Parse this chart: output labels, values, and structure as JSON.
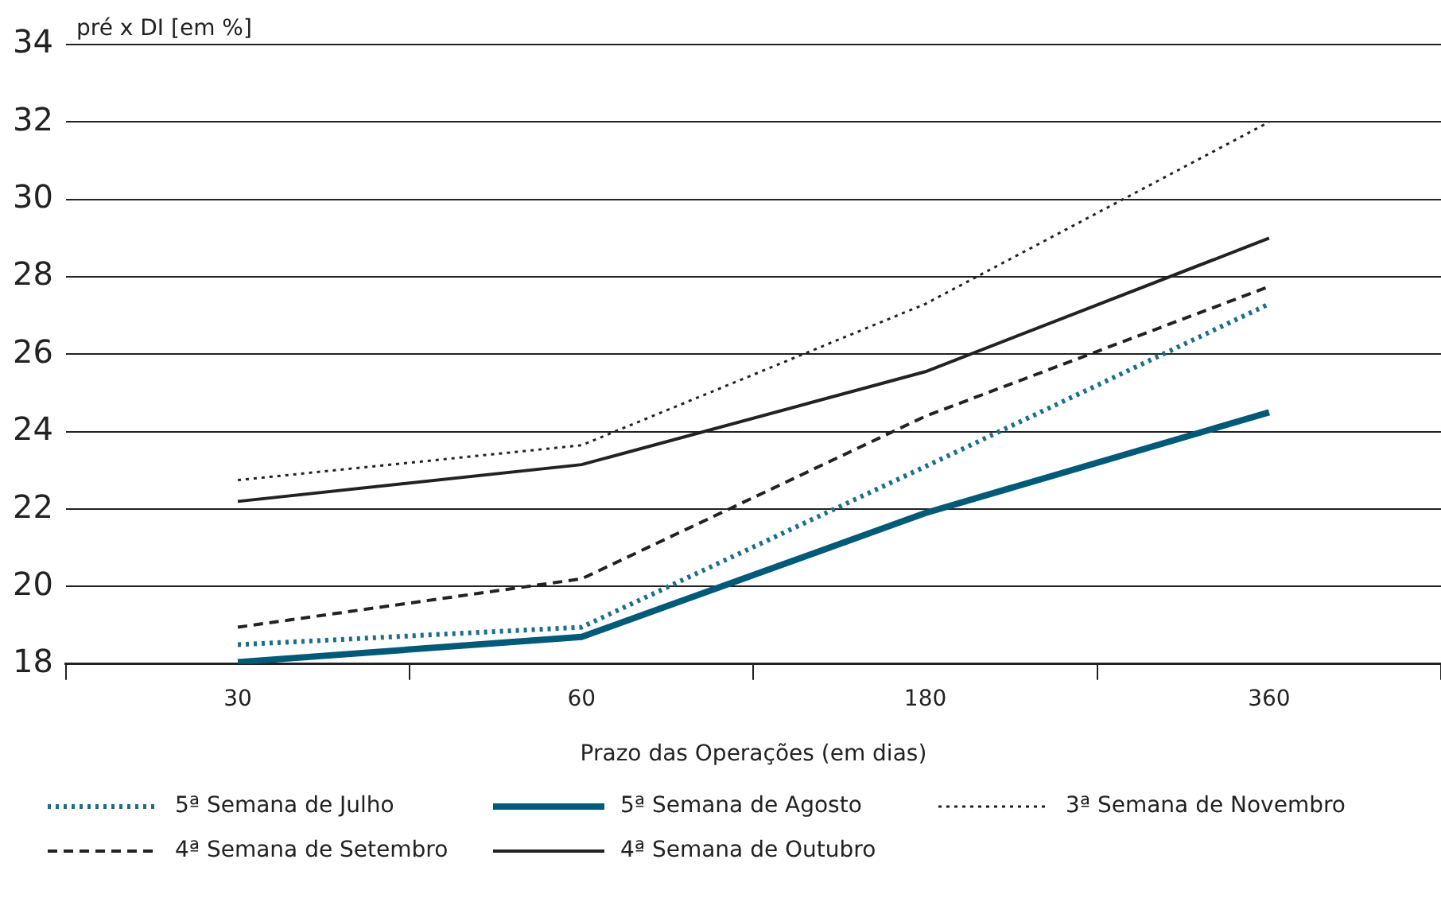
{
  "chart_data": {
    "type": "line",
    "ylabel": "pré x DI [em %]",
    "xlabel": "Prazo das Operações (em dias)",
    "categories": [
      "30",
      "60",
      "180",
      "360"
    ],
    "ylim": [
      18,
      34
    ],
    "yticks": [
      18,
      20,
      22,
      24,
      26,
      28,
      30,
      32,
      34
    ],
    "grid": "y",
    "legend": "bottom",
    "marker": "none",
    "series": [
      {
        "name": "5ª Semana de Julho",
        "color": "#1b6f8c",
        "line_style": "dotted",
        "values": [
          18.5,
          18.95,
          23.1,
          27.3
        ]
      },
      {
        "name": "4ª Semana de Setembro",
        "color": "#222222",
        "line_style": "dashed",
        "values": [
          18.95,
          20.2,
          24.4,
          27.75
        ]
      },
      {
        "name": "5ª Semana de Agosto",
        "color": "#005a78",
        "line_style": "solid",
        "values": [
          18.05,
          18.7,
          21.9,
          24.5
        ]
      },
      {
        "name": "4ª Semana de Outubro",
        "color": "#222222",
        "line_style": "solid",
        "values": [
          22.2,
          23.15,
          25.55,
          29.0
        ]
      },
      {
        "name": "3ª Semana de Novembro",
        "color": "#222222",
        "line_style": "dotted",
        "values": [
          22.75,
          23.65,
          27.3,
          32.0
        ]
      }
    ]
  }
}
